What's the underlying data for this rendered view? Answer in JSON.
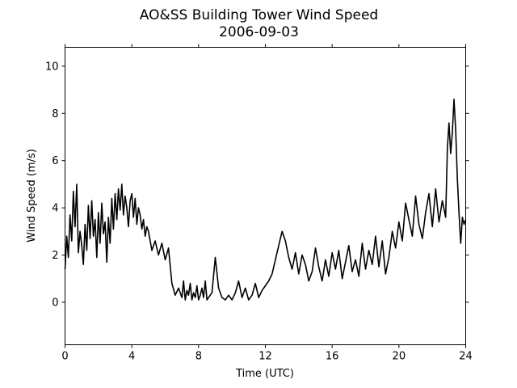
{
  "chart_data": {
    "type": "line",
    "title": "AO&SS Building Tower Wind Speed",
    "subtitle": "2006-09-03",
    "xlabel": "Time (UTC)",
    "ylabel": "Wind Speed (m/s)",
    "xlim": [
      0,
      24
    ],
    "ylim": [
      -1.8,
      10.8
    ],
    "x_ticks": [
      0,
      4,
      8,
      12,
      16,
      20,
      24
    ],
    "y_ticks": [
      0,
      2,
      4,
      6,
      8,
      10
    ],
    "grid": false,
    "legend": "none",
    "series": [
      {
        "color": "#000000",
        "x": [
          0,
          0.1,
          0.2,
          0.3,
          0.4,
          0.5,
          0.6,
          0.7,
          0.8,
          0.9,
          1.0,
          1.1,
          1.2,
          1.3,
          1.4,
          1.5,
          1.6,
          1.7,
          1.8,
          1.9,
          2.0,
          2.1,
          2.2,
          2.3,
          2.4,
          2.5,
          2.6,
          2.7,
          2.8,
          2.9,
          3.0,
          3.1,
          3.2,
          3.3,
          3.4,
          3.5,
          3.6,
          3.7,
          3.8,
          3.9,
          4.0,
          4.1,
          4.2,
          4.3,
          4.4,
          4.5,
          4.6,
          4.7,
          4.8,
          4.9,
          5.0,
          5.2,
          5.4,
          5.6,
          5.8,
          6.0,
          6.2,
          6.4,
          6.6,
          6.8,
          7.0,
          7.1,
          7.2,
          7.3,
          7.4,
          7.5,
          7.6,
          7.7,
          7.8,
          7.9,
          8.0,
          8.1,
          8.2,
          8.3,
          8.4,
          8.5,
          8.6,
          8.8,
          9.0,
          9.2,
          9.4,
          9.6,
          9.8,
          10.0,
          10.2,
          10.4,
          10.6,
          10.8,
          11.0,
          11.2,
          11.4,
          11.6,
          11.8,
          12.0,
          12.2,
          12.4,
          12.6,
          12.8,
          13.0,
          13.2,
          13.4,
          13.6,
          13.8,
          14.0,
          14.2,
          14.4,
          14.6,
          14.8,
          15.0,
          15.2,
          15.4,
          15.6,
          15.8,
          16.0,
          16.2,
          16.4,
          16.6,
          16.8,
          17.0,
          17.2,
          17.4,
          17.6,
          17.8,
          18.0,
          18.2,
          18.4,
          18.6,
          18.8,
          19.0,
          19.2,
          19.4,
          19.6,
          19.8,
          20.0,
          20.2,
          20.4,
          20.6,
          20.8,
          21.0,
          21.2,
          21.4,
          21.6,
          21.8,
          22.0,
          22.2,
          22.4,
          22.6,
          22.8,
          22.9,
          23.0,
          23.1,
          23.2,
          23.3,
          23.4,
          23.5,
          23.6,
          23.7,
          23.8,
          23.9,
          24.0
        ],
        "values": [
          1.4,
          2.8,
          1.9,
          3.7,
          2.6,
          4.7,
          3.2,
          5.0,
          2.1,
          3.0,
          2.4,
          1.6,
          3.3,
          2.2,
          4.1,
          2.7,
          4.3,
          2.8,
          3.5,
          1.9,
          3.8,
          2.5,
          4.2,
          2.9,
          3.4,
          1.7,
          3.6,
          2.5,
          4.4,
          3.1,
          4.6,
          3.5,
          4.8,
          3.9,
          5.0,
          3.7,
          4.5,
          4.0,
          3.2,
          4.3,
          4.6,
          3.6,
          4.4,
          3.3,
          4.0,
          3.7,
          3.1,
          3.5,
          2.8,
          3.2,
          3.0,
          2.2,
          2.6,
          2.0,
          2.5,
          1.8,
          2.3,
          0.8,
          0.3,
          0.6,
          0.2,
          0.9,
          0.1,
          0.5,
          0.3,
          0.8,
          0.1,
          0.4,
          0.2,
          0.7,
          0.1,
          0.3,
          0.6,
          0.2,
          0.9,
          0.1,
          0.2,
          0.4,
          1.9,
          0.6,
          0.2,
          0.1,
          0.3,
          0.1,
          0.4,
          0.9,
          0.2,
          0.6,
          0.1,
          0.3,
          0.8,
          0.2,
          0.5,
          0.7,
          0.9,
          1.2,
          1.8,
          2.4,
          3.0,
          2.6,
          1.9,
          1.4,
          2.1,
          1.2,
          2.0,
          1.6,
          0.9,
          1.3,
          2.3,
          1.5,
          0.9,
          1.8,
          1.1,
          2.1,
          1.4,
          2.2,
          1.0,
          1.7,
          2.4,
          1.3,
          1.8,
          1.1,
          2.5,
          1.4,
          2.2,
          1.6,
          2.8,
          1.5,
          2.6,
          1.2,
          1.9,
          3.0,
          2.3,
          3.4,
          2.6,
          4.2,
          3.5,
          2.8,
          4.5,
          3.3,
          2.7,
          3.8,
          4.6,
          3.2,
          4.8,
          3.4,
          4.3,
          3.6,
          6.5,
          7.6,
          6.3,
          7.2,
          8.6,
          7.3,
          5.2,
          3.8,
          2.5,
          3.6,
          3.3,
          3.5
        ]
      }
    ]
  }
}
